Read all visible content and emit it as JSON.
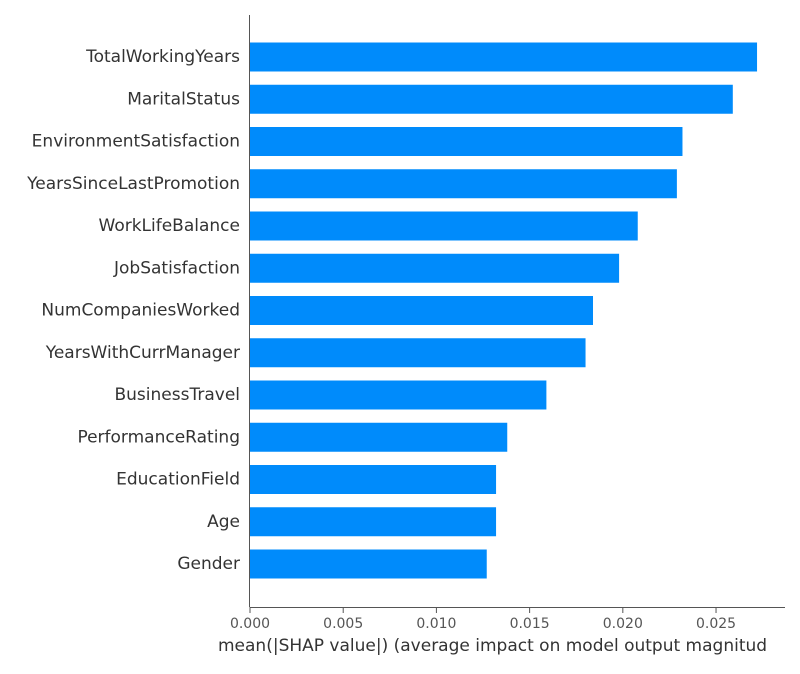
{
  "colors": {
    "bar": "#008bfb",
    "axis": "#555555",
    "label_text": "#333333",
    "tick_text": "#555555"
  },
  "chart_data": {
    "type": "bar",
    "orientation": "horizontal",
    "categories": [
      "TotalWorkingYears",
      "MaritalStatus",
      "EnvironmentSatisfaction",
      "YearsSinceLastPromotion",
      "WorkLifeBalance",
      "JobSatisfaction",
      "NumCompaniesWorked",
      "YearsWithCurrManager",
      "BusinessTravel",
      "PerformanceRating",
      "EducationField",
      "Age",
      "Gender"
    ],
    "values": [
      0.0272,
      0.0259,
      0.0232,
      0.0229,
      0.0208,
      0.0198,
      0.0184,
      0.018,
      0.0159,
      0.0138,
      0.0132,
      0.0132,
      0.0127
    ],
    "xlabel": "mean(|SHAP value|) (average impact on model output magnitud",
    "ylabel": "",
    "xlim": [
      0,
      0.0287
    ],
    "x_ticks": [
      "0.000",
      "0.005",
      "0.010",
      "0.015",
      "0.020",
      "0.025"
    ],
    "grid": false,
    "legend": "none"
  }
}
